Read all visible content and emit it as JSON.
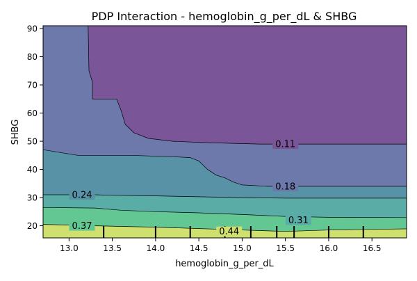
{
  "chart_data": {
    "type": "contour",
    "title": "PDP Interaction - hemoglobin_g_per_dL & SHBG",
    "xlabel": "hemoglobin_g_per_dL",
    "ylabel": "SHBG",
    "xlim": [
      12.7,
      16.9
    ],
    "ylim": [
      15.7,
      91.0
    ],
    "xticks": [
      "13.0",
      "13.5",
      "14.0",
      "14.5",
      "15.0",
      "15.5",
      "16.0",
      "16.5"
    ],
    "yticks": [
      "20",
      "30",
      "40",
      "50",
      "60",
      "70",
      "80",
      "90"
    ],
    "grid": false,
    "levels": [
      {
        "value": "0.11",
        "color": "#7a5597",
        "label_at": [
          15.5,
          49.0
        ]
      },
      {
        "value": "0.18",
        "color": "#6d78ab",
        "label_at": [
          15.5,
          34.0
        ]
      },
      {
        "value": "0.24",
        "color": "#5892a7",
        "label_at": [
          13.15,
          31.0
        ]
      },
      {
        "value": "0.31",
        "color": "#5aaca6",
        "label_at": [
          15.65,
          22.0
        ]
      },
      {
        "value": "0.37",
        "color": "#63c794",
        "label_at": [
          13.15,
          20.0
        ]
      },
      {
        "value": "0.44",
        "color": "#cfe06f",
        "label_at": [
          14.85,
          18.0
        ]
      }
    ],
    "top_color": "#7a5597",
    "boundaries": [
      [
        [
          13.22,
          91.0
        ],
        [
          13.23,
          75.0
        ],
        [
          13.27,
          71.0
        ],
        [
          13.27,
          65.0
        ],
        [
          13.55,
          65.0
        ],
        [
          13.6,
          61.0
        ],
        [
          13.65,
          56.0
        ],
        [
          13.75,
          53.0
        ],
        [
          13.92,
          51.0
        ],
        [
          14.2,
          50.0
        ],
        [
          14.6,
          49.5
        ],
        [
          15.2,
          49.0
        ],
        [
          16.9,
          49.0
        ]
      ],
      [
        [
          12.7,
          47.0
        ],
        [
          12.9,
          46.0
        ],
        [
          13.1,
          45.0
        ],
        [
          13.7,
          45.0
        ],
        [
          14.2,
          44.5
        ],
        [
          14.4,
          44.2
        ],
        [
          14.5,
          43.0
        ],
        [
          14.6,
          40.0
        ],
        [
          14.7,
          38.0
        ],
        [
          14.8,
          37.0
        ],
        [
          14.9,
          35.5
        ],
        [
          15.0,
          34.5
        ],
        [
          15.3,
          34.0
        ],
        [
          16.0,
          34.0
        ],
        [
          16.9,
          34.0
        ]
      ],
      [
        [
          12.7,
          31.0
        ],
        [
          13.3,
          31.0
        ],
        [
          13.5,
          30.8
        ],
        [
          14.0,
          30.6
        ],
        [
          14.5,
          30.3
        ],
        [
          15.0,
          30.0
        ],
        [
          15.5,
          29.8
        ],
        [
          16.0,
          29.8
        ],
        [
          16.9,
          29.8
        ]
      ],
      [
        [
          12.7,
          26.5
        ],
        [
          13.3,
          26.3
        ],
        [
          13.6,
          25.5
        ],
        [
          14.0,
          25.0
        ],
        [
          14.5,
          24.6
        ],
        [
          15.0,
          24.0
        ],
        [
          15.5,
          23.3
        ],
        [
          16.0,
          23.0
        ],
        [
          16.9,
          22.9
        ]
      ],
      [
        [
          12.7,
          20.5
        ],
        [
          13.3,
          20.0
        ],
        [
          14.0,
          19.5
        ],
        [
          14.5,
          19.0
        ],
        [
          15.0,
          18.5
        ],
        [
          15.5,
          18.0
        ],
        [
          16.0,
          18.5
        ],
        [
          16.9,
          18.9
        ]
      ]
    ],
    "rug_x": [
      13.4,
      14.0,
      14.4,
      14.8,
      15.1,
      15.4,
      15.6,
      16.0,
      16.4
    ]
  }
}
